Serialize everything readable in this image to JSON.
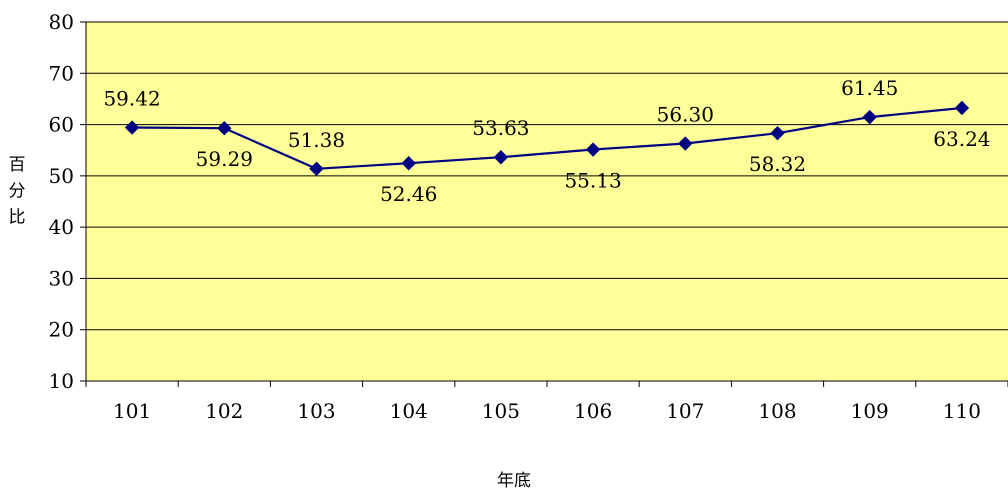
{
  "chart_data": {
    "type": "line",
    "categories": [
      "101",
      "102",
      "103",
      "104",
      "105",
      "106",
      "107",
      "108",
      "109",
      "110"
    ],
    "series": [
      {
        "values": [
          59.42,
          59.29,
          51.38,
          52.46,
          53.63,
          55.13,
          56.3,
          58.32,
          61.45,
          63.24
        ],
        "labels": [
          "59.42",
          "59.29",
          "51.38",
          "52.46",
          "53.63",
          "55.13",
          "56.30",
          "58.32",
          "61.45",
          "63.24"
        ],
        "label_positions": [
          "above",
          "below",
          "above",
          "below",
          "above",
          "below",
          "above",
          "below",
          "above",
          "below"
        ],
        "color": "#000080",
        "marker": "diamond"
      }
    ],
    "xlabel": "年底",
    "ylabel": "百分比",
    "ylim": [
      10,
      80
    ],
    "yticks": [
      "10",
      "20",
      "30",
      "40",
      "50",
      "60",
      "70",
      "80"
    ],
    "grid": true,
    "plot_background": "#FFFF99",
    "gridline_color": "#000000"
  }
}
